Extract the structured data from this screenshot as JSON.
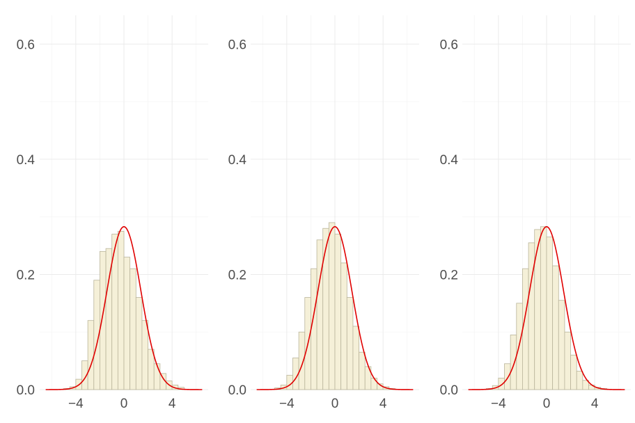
{
  "chart_data": [
    {
      "type": "histogram",
      "x": [
        -6.75,
        -6.25,
        -5.75,
        -5.25,
        -4.75,
        -4.25,
        -3.75,
        -3.25,
        -2.75,
        -2.25,
        -1.75,
        -1.25,
        -0.75,
        -0.25,
        0.25,
        0.75,
        1.25,
        1.75,
        2.25,
        2.75,
        3.25,
        3.75,
        4.25,
        4.75,
        5.25,
        5.75,
        6.25,
        6.75
      ],
      "values": [
        0.0,
        0.0,
        0.0,
        0.0,
        0.002,
        0.005,
        0.018,
        0.05,
        0.12,
        0.19,
        0.24,
        0.245,
        0.27,
        0.275,
        0.23,
        0.21,
        0.16,
        0.12,
        0.07,
        0.045,
        0.028,
        0.015,
        0.008,
        0.004,
        0.0,
        0.0,
        0.0,
        0.0
      ],
      "density_curve": {
        "mean": 0,
        "sd": 1.41
      },
      "xlim": [
        -7,
        7
      ],
      "ylim": [
        0,
        0.65
      ],
      "xticks": [
        "−4",
        "0",
        "4"
      ],
      "yticks": [
        "0.0",
        "0.2",
        "0.4",
        "0.6"
      ],
      "xlabel": "",
      "ylabel": "",
      "title": "",
      "grid": true,
      "colors": {
        "bar_fill": "#f5f0d8",
        "bar_stroke": "#b9b49a",
        "curve": "#e00000"
      }
    },
    {
      "type": "histogram",
      "x": [
        -6.75,
        -6.25,
        -5.75,
        -5.25,
        -4.75,
        -4.25,
        -3.75,
        -3.25,
        -2.75,
        -2.25,
        -1.75,
        -1.25,
        -0.75,
        -0.25,
        0.25,
        0.75,
        1.25,
        1.75,
        2.25,
        2.75,
        3.25,
        3.75,
        4.25,
        4.75,
        5.25,
        5.75,
        6.25,
        6.75
      ],
      "values": [
        0.0,
        0.0,
        0.0,
        0.0,
        0.003,
        0.008,
        0.025,
        0.055,
        0.1,
        0.16,
        0.21,
        0.26,
        0.28,
        0.29,
        0.27,
        0.22,
        0.16,
        0.11,
        0.065,
        0.04,
        0.02,
        0.01,
        0.005,
        0.002,
        0.0,
        0.0,
        0.0,
        0.0
      ],
      "density_curve": {
        "mean": 0,
        "sd": 1.41
      },
      "xlim": [
        -7,
        7
      ],
      "ylim": [
        0,
        0.65
      ],
      "xticks": [
        "−4",
        "0",
        "4"
      ],
      "yticks": [
        "0.0",
        "0.2",
        "0.4",
        "0.6"
      ],
      "xlabel": "",
      "ylabel": "",
      "title": "",
      "grid": true,
      "colors": {
        "bar_fill": "#f5f0d8",
        "bar_stroke": "#b9b49a",
        "curve": "#e00000"
      }
    },
    {
      "type": "histogram",
      "x": [
        -6.75,
        -6.25,
        -5.75,
        -5.25,
        -4.75,
        -4.25,
        -3.75,
        -3.25,
        -2.75,
        -2.25,
        -1.75,
        -1.25,
        -0.75,
        -0.25,
        0.25,
        0.75,
        1.25,
        1.75,
        2.25,
        2.75,
        3.25,
        3.75,
        4.25,
        4.75,
        5.25,
        5.75,
        6.25,
        6.75
      ],
      "values": [
        0.0,
        0.0,
        0.0,
        0.0,
        0.002,
        0.007,
        0.02,
        0.045,
        0.095,
        0.15,
        0.21,
        0.255,
        0.278,
        0.283,
        0.265,
        0.215,
        0.155,
        0.1,
        0.06,
        0.032,
        0.016,
        0.008,
        0.004,
        0.002,
        0.0,
        0.0,
        0.0,
        0.0
      ],
      "density_curve": {
        "mean": 0,
        "sd": 1.41
      },
      "xlim": [
        -7,
        7
      ],
      "ylim": [
        0,
        0.65
      ],
      "xticks": [
        "−4",
        "0",
        "4"
      ],
      "yticks": [
        "0.0",
        "0.2",
        "0.4",
        "0.6"
      ],
      "xlabel": "",
      "ylabel": "",
      "title": "",
      "grid": true,
      "colors": {
        "bar_fill": "#f5f0d8",
        "bar_stroke": "#b9b49a",
        "curve": "#e00000"
      }
    }
  ]
}
